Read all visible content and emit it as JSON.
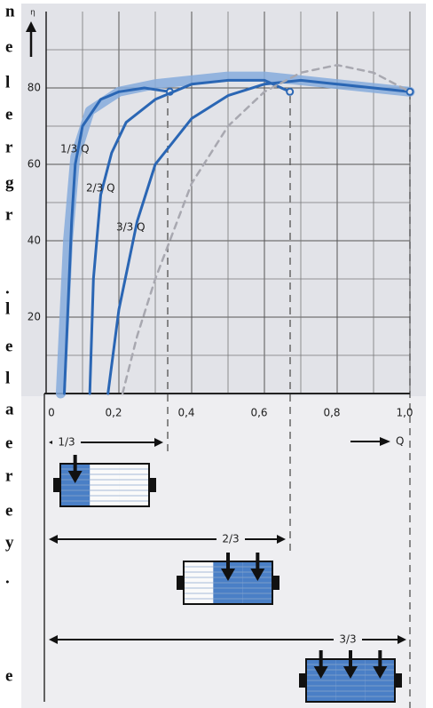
{
  "margin_text": [
    "n",
    "e",
    "l",
    "e",
    "r",
    "g",
    "r",
    ".",
    "l",
    "e",
    "l",
    "a",
    "e",
    "r",
    "e",
    "y",
    ".",
    "e"
  ],
  "chart_data": {
    "type": "line",
    "y_label": "η",
    "x_label": "Q",
    "xlim": [
      0,
      1
    ],
    "ylim": [
      0,
      100
    ],
    "xticks": [
      0,
      {
        "value": 0.2,
        "label": "0,2"
      },
      {
        "value": 0.4,
        "label": "0,4"
      },
      {
        "value": 0.6,
        "label": "0,6"
      },
      {
        "value": 0.8,
        "label": "0,8"
      },
      {
        "value": 1.0,
        "label": "1,0"
      }
    ],
    "yticks": [
      20,
      40,
      60,
      80
    ],
    "grid": true,
    "minor_grid": true,
    "series": [
      {
        "style": "band",
        "color": "#86acdc",
        "x": [
          0.04,
          0.06,
          0.08,
          0.12,
          0.2,
          0.3,
          0.4,
          0.5,
          0.6,
          0.7,
          0.8,
          0.9,
          1.0
        ],
        "values": [
          0,
          40,
          62,
          74,
          79,
          81,
          82,
          83,
          83,
          82,
          81,
          80,
          79
        ]
      },
      {
        "name": "1/3 Q",
        "style": "solid",
        "color": "#2a66b4",
        "end_marker": true,
        "x": [
          0.05,
          0.07,
          0.08,
          0.1,
          0.15,
          0.2,
          0.27,
          0.34
        ],
        "values": [
          0,
          45,
          60,
          70,
          77,
          79,
          80,
          79
        ]
      },
      {
        "name": "2/3 Q",
        "style": "solid",
        "color": "#2a66b4",
        "end_marker": true,
        "x": [
          0.12,
          0.13,
          0.15,
          0.18,
          0.22,
          0.3,
          0.4,
          0.5,
          0.6,
          0.67
        ],
        "values": [
          0,
          30,
          52,
          63,
          71,
          77,
          81,
          82,
          82,
          79
        ]
      },
      {
        "name": "3/3 Q",
        "style": "solid",
        "color": "#2a66b4",
        "end_marker": true,
        "x": [
          0.17,
          0.2,
          0.25,
          0.3,
          0.4,
          0.5,
          0.6,
          0.7,
          0.8,
          0.9,
          1.0
        ],
        "values": [
          0,
          22,
          45,
          60,
          72,
          78,
          81,
          82,
          81,
          80,
          79
        ]
      },
      {
        "style": "dashed",
        "color": "#a8a8b0",
        "x": [
          0.21,
          0.25,
          0.3,
          0.4,
          0.5,
          0.6,
          0.7,
          0.8,
          0.9,
          1.0
        ],
        "values": [
          0,
          15,
          30,
          55,
          70,
          79,
          84,
          86,
          84,
          79
        ]
      }
    ],
    "range_labels": [
      "1/3",
      "2/3",
      "3/3"
    ]
  }
}
